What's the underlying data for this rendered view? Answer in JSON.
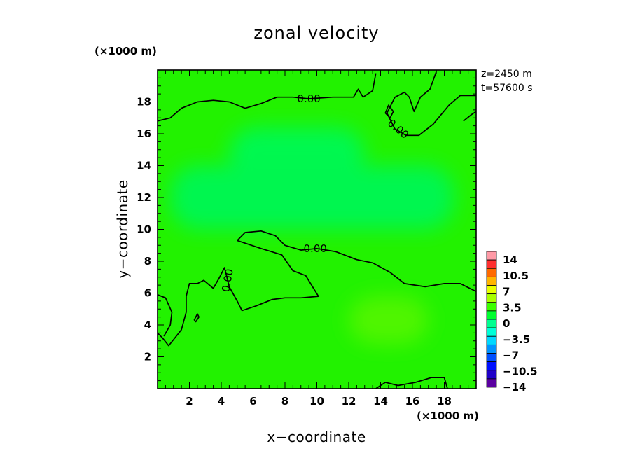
{
  "chart_data": {
    "type": "heatmap",
    "title": "zonal velocity",
    "xlabel": "x−coordinate",
    "ylabel": "y−coordinate",
    "x_unit": "(×1000 m)",
    "y_unit": "(×1000 m)",
    "xlim": [
      0,
      20
    ],
    "ylim": [
      0,
      20
    ],
    "x_ticks": [
      2,
      4,
      6,
      8,
      10,
      12,
      14,
      16,
      18
    ],
    "y_ticks": [
      2,
      4,
      6,
      8,
      10,
      12,
      14,
      16,
      18
    ],
    "info": [
      "z=2450 m",
      "t=57600 s"
    ],
    "colorbar": {
      "labels": [
        "14",
        "10.5",
        "7",
        "3.5",
        "0",
        "−3.5",
        "−7",
        "−10.5",
        "−14"
      ],
      "colors": [
        "#ff9aa6",
        "#ff3030",
        "#ff6a00",
        "#ffb400",
        "#e8ff00",
        "#a8ff00",
        "#3cff00",
        "#00ff30",
        "#00ff90",
        "#00ffd8",
        "#00d8ff",
        "#0094ff",
        "#0050ff",
        "#0010ff",
        "#2000c8",
        "#5a00a0"
      ]
    },
    "contour_label": "0.00",
    "contour_labels": [
      {
        "x": 9.5,
        "y": 18.2,
        "text": "0.00"
      },
      {
        "x": 15.1,
        "y": 16.3,
        "text": "0.00"
      },
      {
        "x": 9.9,
        "y": 8.8,
        "text": "0.00"
      },
      {
        "x": 4.4,
        "y": 6.8,
        "text": "0.00"
      }
    ],
    "contours": [
      [
        [
          0,
          16.8
        ],
        [
          0.8,
          17.0
        ],
        [
          1.5,
          17.6
        ],
        [
          2.5,
          18.0
        ],
        [
          3.5,
          18.1
        ],
        [
          4.5,
          18.0
        ],
        [
          5.5,
          17.6
        ],
        [
          6.5,
          17.9
        ],
        [
          7.5,
          18.3
        ],
        [
          8.5,
          18.3
        ],
        [
          9.5,
          18.2
        ],
        [
          11,
          18.3
        ],
        [
          12.3,
          18.3
        ],
        [
          12.6,
          18.8
        ],
        [
          12.9,
          18.3
        ],
        [
          13.5,
          18.7
        ],
        [
          13.7,
          19.8
        ]
      ],
      [
        [
          17.5,
          19.9
        ],
        [
          17.1,
          18.8
        ],
        [
          16.5,
          18.3
        ],
        [
          16.1,
          17.4
        ],
        [
          15.8,
          18.3
        ],
        [
          15.5,
          18.6
        ],
        [
          14.9,
          18.3
        ],
        [
          14.4,
          17.3
        ],
        [
          14.9,
          16.3
        ],
        [
          15.6,
          15.9
        ],
        [
          16.4,
          15.9
        ],
        [
          17.3,
          16.6
        ],
        [
          18.3,
          17.8
        ],
        [
          19.0,
          18.4
        ],
        [
          20,
          18.4
        ]
      ],
      [
        [
          14.3,
          17.3
        ],
        [
          14.5,
          17.8
        ],
        [
          14.8,
          17.4
        ],
        [
          14.6,
          17.0
        ],
        [
          14.3,
          17.3
        ]
      ],
      [
        [
          19.2,
          16.8
        ],
        [
          19.7,
          17.2
        ],
        [
          20,
          17.4
        ]
      ],
      [
        [
          5.0,
          9.3
        ],
        [
          5.5,
          9.8
        ],
        [
          6.5,
          9.9
        ],
        [
          7.4,
          9.6
        ],
        [
          8.0,
          9.0
        ],
        [
          9.0,
          8.7
        ],
        [
          10.0,
          8.8
        ],
        [
          11.2,
          8.6
        ],
        [
          12.5,
          8.1
        ],
        [
          13.5,
          7.9
        ],
        [
          14.6,
          7.3
        ],
        [
          15.5,
          6.6
        ],
        [
          16.8,
          6.4
        ],
        [
          18.0,
          6.6
        ],
        [
          19.0,
          6.6
        ],
        [
          20,
          6.1
        ]
      ],
      [
        [
          5.0,
          9.3
        ],
        [
          6.5,
          8.8
        ],
        [
          7.8,
          8.4
        ],
        [
          8.5,
          7.4
        ],
        [
          9.3,
          7.1
        ],
        [
          10.1,
          5.8
        ],
        [
          9.0,
          5.7
        ],
        [
          8.0,
          5.7
        ],
        [
          7.2,
          5.6
        ],
        [
          6.2,
          5.2
        ],
        [
          5.3,
          4.9
        ],
        [
          5.0,
          5.5
        ],
        [
          4.5,
          6.4
        ],
        [
          4.2,
          7.6
        ],
        [
          3.9,
          7.0
        ],
        [
          3.5,
          6.3
        ],
        [
          2.9,
          6.8
        ],
        [
          2.5,
          6.6
        ],
        [
          2.0,
          6.6
        ],
        [
          1.8,
          5.8
        ],
        [
          1.8,
          4.8
        ],
        [
          1.5,
          3.7
        ],
        [
          0.7,
          2.7
        ],
        [
          0.3,
          3.2
        ],
        [
          0,
          3.5
        ]
      ],
      [
        [
          0,
          5.9
        ],
        [
          0.5,
          5.7
        ],
        [
          0.9,
          4.8
        ],
        [
          0.8,
          4.0
        ],
        [
          0.4,
          3.3
        ]
      ],
      [
        [
          2.3,
          4.3
        ],
        [
          2.5,
          4.7
        ],
        [
          2.6,
          4.5
        ],
        [
          2.4,
          4.2
        ],
        [
          2.3,
          4.3
        ]
      ],
      [
        [
          13.7,
          0
        ],
        [
          14.3,
          0.4
        ],
        [
          15.1,
          0.2
        ],
        [
          16.2,
          0.4
        ],
        [
          17.2,
          0.7
        ],
        [
          18.0,
          0.7
        ],
        [
          18.2,
          0
        ]
      ]
    ],
    "bands": [
      {
        "y_min": 13.2,
        "y_max": 16.4,
        "x_min": 4.5,
        "x_max": 13.0,
        "color": "#00f850"
      },
      {
        "y_min": 10.0,
        "y_max": 14.0,
        "x_min": 0.8,
        "x_max": 18.6,
        "color": "#00f650"
      },
      {
        "y_min": 2.8,
        "y_max": 5.8,
        "x_min": 12.0,
        "x_max": 17.0,
        "color": "#4ff500"
      }
    ]
  }
}
